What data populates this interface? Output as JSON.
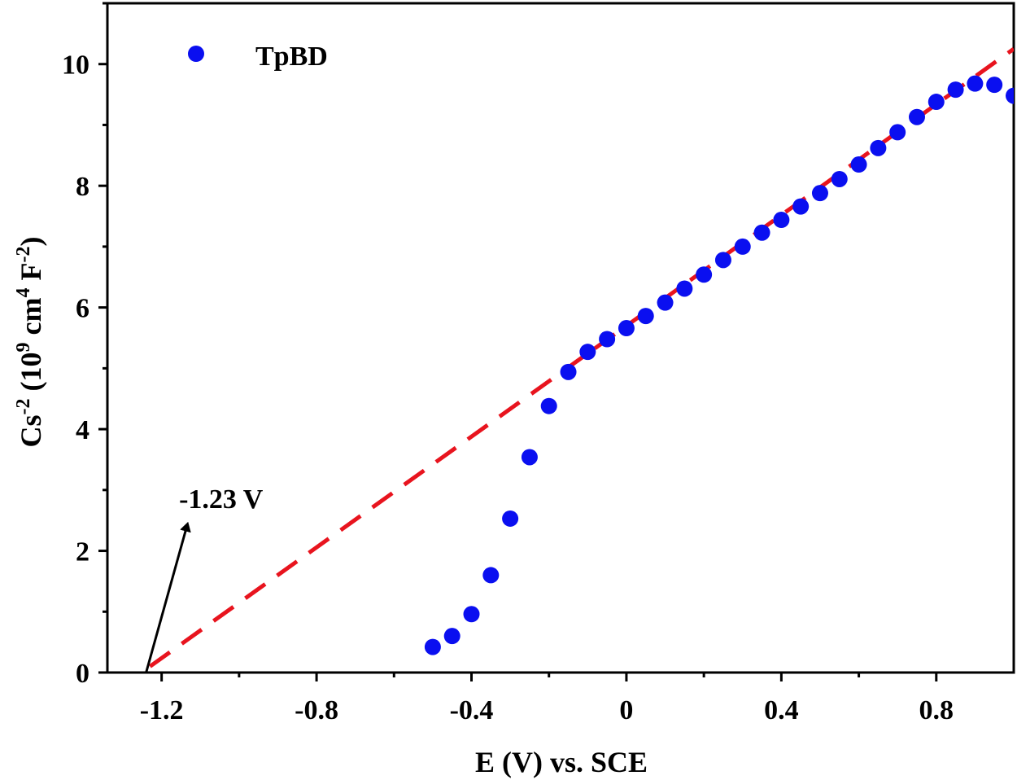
{
  "chart_data": {
    "type": "scatter",
    "title": "",
    "xlabel": "E (V) vs. SCE",
    "ylabel": {
      "base": "Cs",
      "exp1": "-2",
      "mid": " (10",
      "exp2": "9",
      "mid2": " cm",
      "exp3": "4",
      "mid3": " F",
      "exp4": "-2",
      "end": ")"
    },
    "xlim": [
      -1.34,
      1.0
    ],
    "ylim": [
      0,
      11
    ],
    "x_ticks": [
      -1.2,
      -0.8,
      -0.4,
      0,
      0.4,
      0.8
    ],
    "x_tick_labels": [
      "-1.2",
      "-0.8",
      "-0.4",
      "0",
      "0.4",
      "0.8"
    ],
    "y_ticks": [
      0,
      2,
      4,
      6,
      8,
      10
    ],
    "y_tick_labels": [
      "0",
      "2",
      "4",
      "6",
      "8",
      "10"
    ],
    "legend": {
      "label": "TpBD",
      "position": "top-left"
    },
    "series": [
      {
        "name": "TpBD",
        "color": "#0a0ff0",
        "x": [
          -0.5,
          -0.45,
          -0.4,
          -0.35,
          -0.3,
          -0.25,
          -0.2,
          -0.15,
          -0.1,
          -0.05,
          0,
          0.05,
          0.1,
          0.15,
          0.2,
          0.25,
          0.3,
          0.35,
          0.4,
          0.45,
          0.5,
          0.55,
          0.6,
          0.65,
          0.7,
          0.75,
          0.8,
          0.85,
          0.9,
          0.95,
          1.0
        ],
        "y": [
          0.42,
          0.6,
          0.96,
          1.6,
          2.53,
          3.54,
          4.38,
          4.94,
          5.27,
          5.48,
          5.66,
          5.86,
          6.08,
          6.31,
          6.54,
          6.78,
          7.0,
          7.23,
          7.44,
          7.66,
          7.88,
          8.11,
          8.35,
          8.62,
          8.88,
          9.13,
          9.38,
          9.58,
          9.68,
          9.66,
          9.48
        ]
      }
    ],
    "fit_line": {
      "name": "linear fit",
      "color": "#e8141e",
      "style": "dashed",
      "x": [
        -1.23,
        1.0
      ],
      "y": [
        0.1,
        10.25
      ]
    },
    "annotation": {
      "text": "-1.23 V",
      "arrow_from": [
        -1.24,
        0.0
      ],
      "arrow_to": [
        -1.135,
        2.4
      ],
      "text_anchor_point": [
        -1.155,
        2.7
      ]
    }
  }
}
